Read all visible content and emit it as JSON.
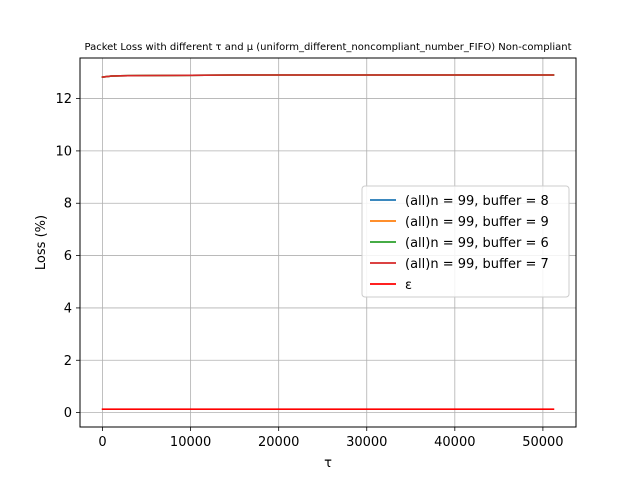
{
  "chart_data": {
    "type": "line",
    "title": "Packet Loss with different τ and μ (uniform_different_noncompliant_number_FIFO) Non-compliant",
    "xlabel": "τ",
    "ylabel": "Loss (%)",
    "xlim": [
      -2560,
      53760
    ],
    "ylim": [
      -0.55,
      13.55
    ],
    "x_ticks": [
      0,
      10000,
      20000,
      30000,
      40000,
      50000
    ],
    "x_tick_labels": [
      "0",
      "10000",
      "20000",
      "30000",
      "40000",
      "50000"
    ],
    "y_ticks": [
      0,
      2,
      4,
      6,
      8,
      10,
      12
    ],
    "y_tick_labels": [
      "0",
      "2",
      "4",
      "6",
      "8",
      "10",
      "12"
    ],
    "grid": true,
    "legend_position": "center-right",
    "series": [
      {
        "name": "(all)n = 99, buffer =  8",
        "color": "#1f77b4",
        "x": [
          0,
          1000,
          2000,
          5000,
          10000,
          15000,
          20000,
          25000,
          30000,
          35000,
          40000,
          45000,
          51200
        ],
        "y": [
          12.82,
          12.86,
          12.87,
          12.88,
          12.89,
          12.9,
          12.9,
          12.9,
          12.9,
          12.9,
          12.9,
          12.9,
          12.9
        ]
      },
      {
        "name": "(all)n = 99, buffer =  9",
        "color": "#ff7f0e",
        "x": [
          0,
          1000,
          2000,
          5000,
          10000,
          15000,
          20000,
          25000,
          30000,
          35000,
          40000,
          45000,
          51200
        ],
        "y": [
          12.82,
          12.86,
          12.87,
          12.88,
          12.89,
          12.9,
          12.9,
          12.9,
          12.9,
          12.9,
          12.9,
          12.9,
          12.9
        ]
      },
      {
        "name": "(all)n = 99, buffer =  6",
        "color": "#2ca02c",
        "x": [
          0,
          1000,
          2000,
          5000,
          10000,
          15000,
          20000,
          25000,
          30000,
          35000,
          40000,
          45000,
          51200
        ],
        "y": [
          12.82,
          12.86,
          12.87,
          12.88,
          12.89,
          12.9,
          12.9,
          12.9,
          12.9,
          12.9,
          12.9,
          12.9,
          12.9
        ]
      },
      {
        "name": "(all)n = 99, buffer =  7",
        "color": "#d62728",
        "x": [
          0,
          1000,
          2000,
          5000,
          10000,
          15000,
          20000,
          25000,
          30000,
          35000,
          40000,
          45000,
          51200
        ],
        "y": [
          12.82,
          12.86,
          12.87,
          12.88,
          12.89,
          12.9,
          12.9,
          12.9,
          12.9,
          12.9,
          12.9,
          12.9,
          12.9
        ]
      },
      {
        "name": "ε",
        "color": "#ff0000",
        "x": [
          0,
          51200
        ],
        "y": [
          0.13,
          0.13
        ]
      }
    ]
  }
}
